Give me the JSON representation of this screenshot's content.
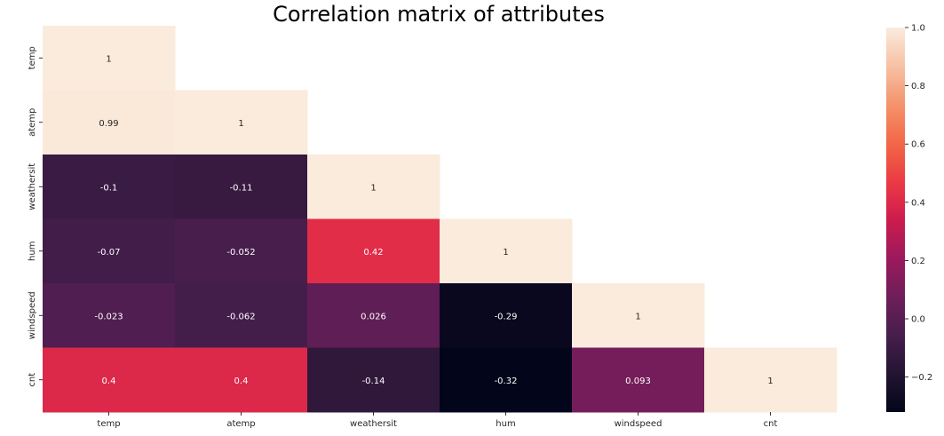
{
  "chart_data": {
    "type": "heatmap",
    "title": "Correlation matrix of attributes",
    "xlabel": "",
    "ylabel": "",
    "labels": [
      "temp",
      "atemp",
      "weathersit",
      "hum",
      "windspeed",
      "cnt"
    ],
    "mask": "upper triangle (above diagonal) hidden",
    "matrix": [
      [
        1,
        null,
        null,
        null,
        null,
        null
      ],
      [
        0.99,
        1,
        null,
        null,
        null,
        null
      ],
      [
        -0.1,
        -0.11,
        1,
        null,
        null,
        null
      ],
      [
        -0.07,
        -0.052,
        0.42,
        1,
        null,
        null
      ],
      [
        -0.023,
        -0.062,
        0.026,
        -0.29,
        1,
        null
      ],
      [
        0.4,
        0.4,
        -0.14,
        -0.32,
        0.093,
        1
      ]
    ],
    "annotations": [
      [
        "1"
      ],
      [
        "0.99",
        "1"
      ],
      [
        "-0.1",
        "-0.11",
        "1"
      ],
      [
        "-0.07",
        "-0.052",
        "0.42",
        "1"
      ],
      [
        "-0.023",
        "-0.062",
        "0.026",
        "-0.29",
        "1"
      ],
      [
        "0.4",
        "0.4",
        "-0.14",
        "-0.32",
        "0.093",
        "1"
      ]
    ],
    "colorbar": {
      "colormap": "rocket",
      "vmin": -0.32,
      "vmax": 1.0,
      "ticks": [
        1.0,
        0.8,
        0.6,
        0.4,
        0.2,
        0.0,
        -0.2
      ],
      "tick_labels": [
        "1.0",
        "0.8",
        "0.6",
        "0.4",
        "0.2",
        "0.0",
        "−0.2"
      ]
    },
    "grid": false
  }
}
